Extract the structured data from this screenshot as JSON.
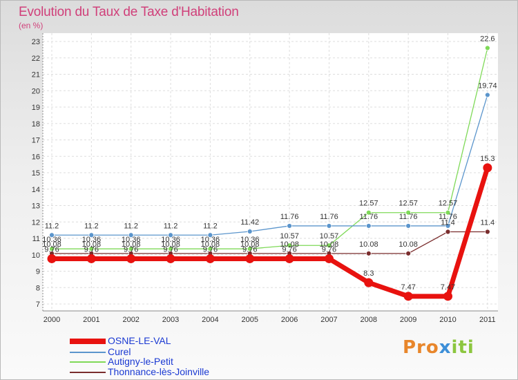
{
  "title": "Evolution du Taux de Taxe d'Habitation",
  "unit": "(en %)",
  "logo": {
    "part1": "Pro",
    "part2": "x",
    "part3": "iti"
  },
  "chart_data": {
    "type": "line",
    "title": "Evolution du Taux de Taxe d'Habitation",
    "ylabel": "(en %)",
    "xlabel": "",
    "x": [
      "2000",
      "2001",
      "2002",
      "2003",
      "2004",
      "2005",
      "2006",
      "2007",
      "2008",
      "2009",
      "2010",
      "2011"
    ],
    "ylim": [
      7,
      23
    ],
    "yticks": [
      7,
      8,
      9,
      10,
      11,
      12,
      13,
      14,
      15,
      16,
      17,
      18,
      19,
      20,
      21,
      22,
      23
    ],
    "grid": true,
    "legend_position": "bottom-left",
    "series": [
      {
        "name": "OSNE-LE-VAL",
        "color": "#e8120f",
        "values": [
          9.76,
          9.76,
          9.76,
          9.76,
          9.76,
          9.76,
          9.76,
          9.76,
          8.3,
          7.47,
          7.47,
          15.3
        ],
        "labels": [
          "9.76",
          "9.76",
          "9.76",
          "9.76",
          "9.76",
          "9.76",
          "9.76",
          "9.76",
          "8.3",
          "7.47",
          "7.47",
          "15.3"
        ]
      },
      {
        "name": "Curel",
        "color": "#5b95cc",
        "values": [
          11.2,
          11.2,
          11.2,
          11.2,
          11.2,
          11.42,
          11.76,
          11.76,
          11.76,
          11.76,
          11.76,
          19.74
        ],
        "labels": [
          "11.2",
          "11.2",
          "11.2",
          "11.2",
          "11.2",
          "11.42",
          "11.76",
          "11.76",
          "11.76",
          "11.76",
          "11.76",
          "19.74"
        ]
      },
      {
        "name": "Autigny-le-Petit",
        "color": "#7ed957",
        "values": [
          10.36,
          10.36,
          10.36,
          10.36,
          10.36,
          10.36,
          10.57,
          10.57,
          12.57,
          12.57,
          12.57,
          22.6
        ],
        "labels": [
          "10.36",
          "10.36",
          "10.36",
          "10.36",
          "10.36",
          "10.36",
          "10.57",
          "10.57",
          "12.57",
          "12.57",
          "12.57",
          "22.6"
        ]
      },
      {
        "name": "Thonnance-lès-Joinville",
        "color": "#7a2d2d",
        "values": [
          10.08,
          10.08,
          10.08,
          10.08,
          10.08,
          10.08,
          10.08,
          10.08,
          10.08,
          10.08,
          11.4,
          11.4
        ],
        "labels": [
          "10.08",
          "10.08",
          "10.08",
          "10.08",
          "10.08",
          "10.08",
          "10.08",
          "10.08",
          "10.08",
          "10.08",
          "11.4",
          "11.4"
        ]
      }
    ]
  }
}
